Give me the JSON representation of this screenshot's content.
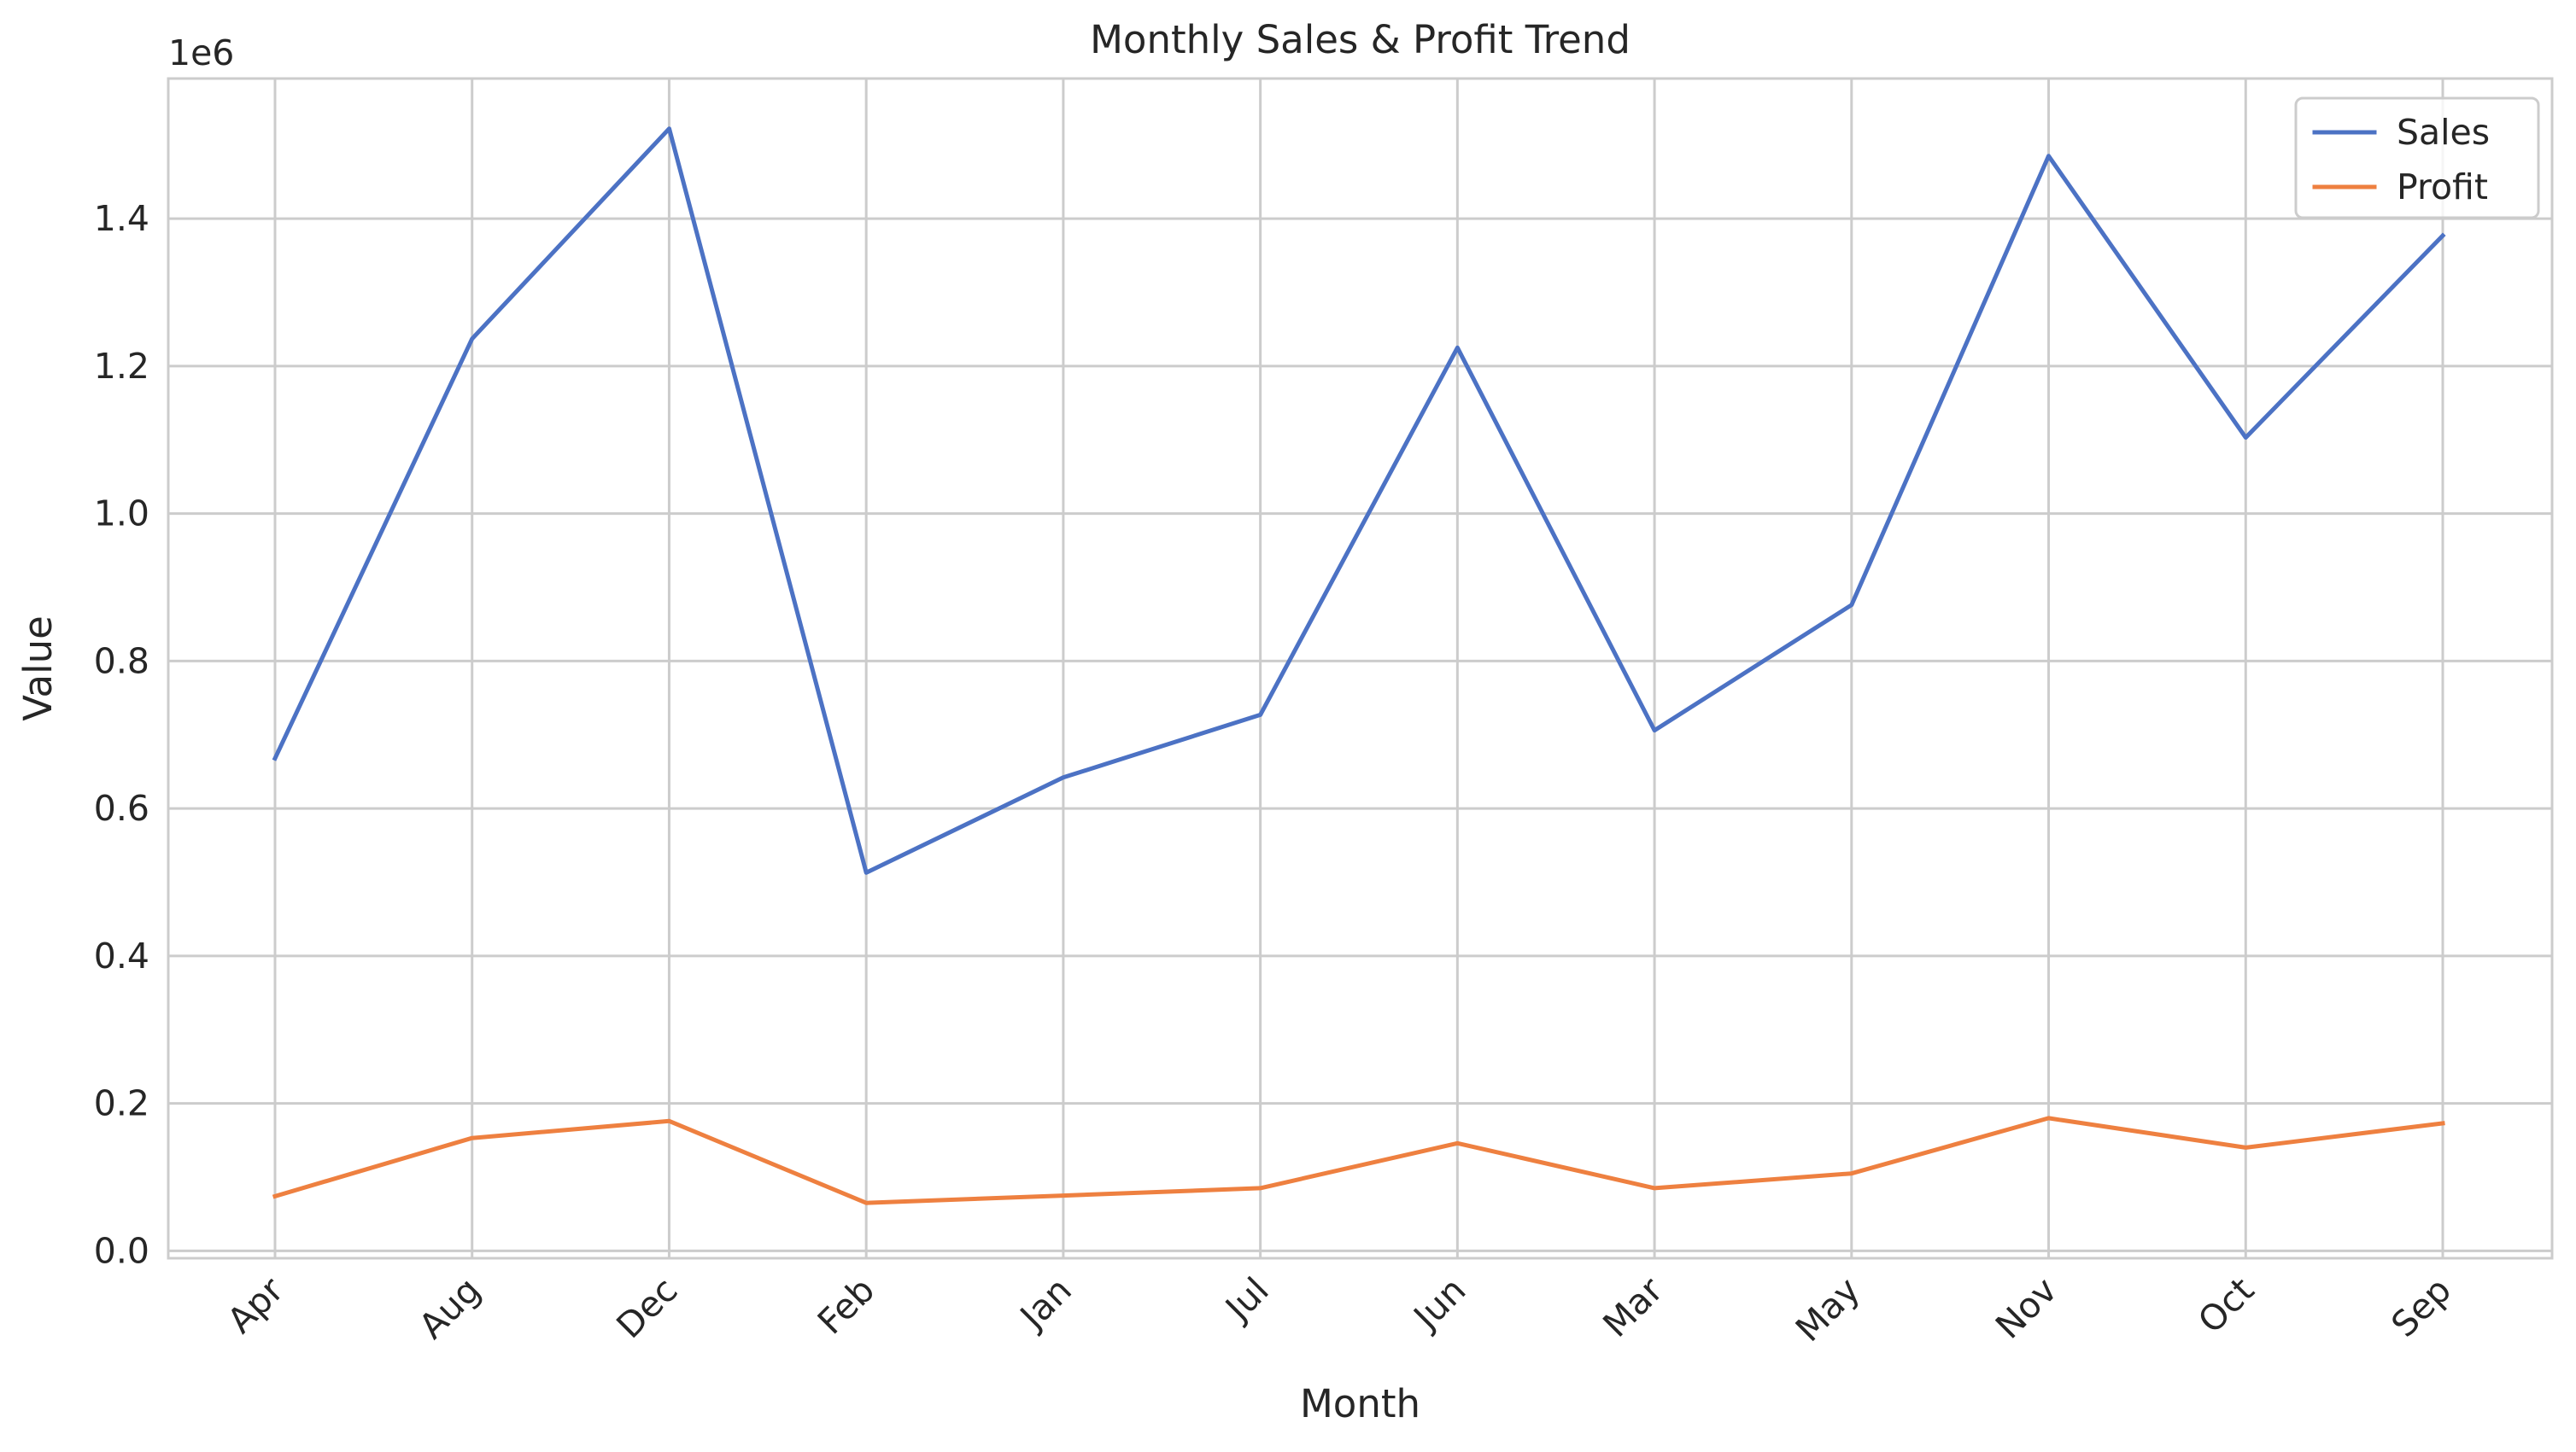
{
  "chart_data": {
    "type": "line",
    "title": "Monthly Sales & Profit Trend",
    "xlabel": "Month",
    "ylabel": "Value",
    "y_offset_label": "1e6",
    "categories": [
      "Apr",
      "Aug",
      "Dec",
      "Feb",
      "Jan",
      "Jul",
      "Jun",
      "Mar",
      "May",
      "Nov",
      "Oct",
      "Sep"
    ],
    "ylim": [
      -0.01,
      1.59
    ],
    "y_ticks": [
      0.0,
      0.2,
      0.4,
      0.6,
      0.8,
      1.0,
      1.2,
      1.4
    ],
    "y_tick_labels": [
      "0.0",
      "0.2",
      "0.4",
      "0.6",
      "0.8",
      "1.0",
      "1.2",
      "1.4"
    ],
    "grid": true,
    "legend_position": "top-right",
    "series": [
      {
        "name": "Sales",
        "color": "#4c72c4",
        "values": [
          0.668,
          1.237,
          1.522,
          0.513,
          0.642,
          0.727,
          1.225,
          0.706,
          0.876,
          1.485,
          1.103,
          1.377
        ]
      },
      {
        "name": "Profit",
        "color": "#ee8040",
        "values": [
          0.074,
          0.153,
          0.176,
          0.065,
          0.075,
          0.085,
          0.146,
          0.085,
          0.105,
          0.18,
          0.14,
          0.173
        ]
      }
    ]
  }
}
